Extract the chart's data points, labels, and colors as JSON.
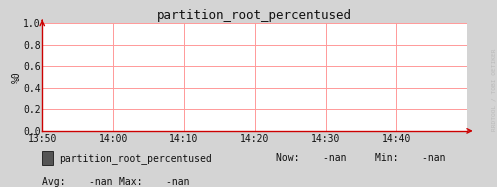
{
  "title": "partition_root_percentused",
  "ylabel": "%0",
  "xlabel_ticks": [
    "13:50",
    "14:00",
    "14:10",
    "14:20",
    "14:30",
    "14:40"
  ],
  "ylim": [
    0.0,
    1.0
  ],
  "yticks": [
    0.0,
    0.2,
    0.4,
    0.6,
    0.8,
    1.0
  ],
  "ytick_labels": [
    "0.0",
    "0.2",
    "0.4",
    "0.6",
    "0.8",
    "1.0"
  ],
  "bg_color": "#d4d4d4",
  "plot_bg_color": "#ffffff",
  "grid_color": "#ff9999",
  "axis_color": "#cc0000",
  "title_color": "#111111",
  "tick_color": "#111111",
  "legend_label": "partition_root_percentused",
  "legend_box_color": "#555555",
  "now_val": "-nan",
  "min_val": "-nan",
  "avg_val": "-nan",
  "max_val": "-nan",
  "watermark": "RRDTOOL / TOBI OETIKER",
  "watermark_color": "#bbbbbb",
  "font_size": 7,
  "title_font_size": 9,
  "figwidth": 4.97,
  "figheight": 1.87,
  "dpi": 100
}
